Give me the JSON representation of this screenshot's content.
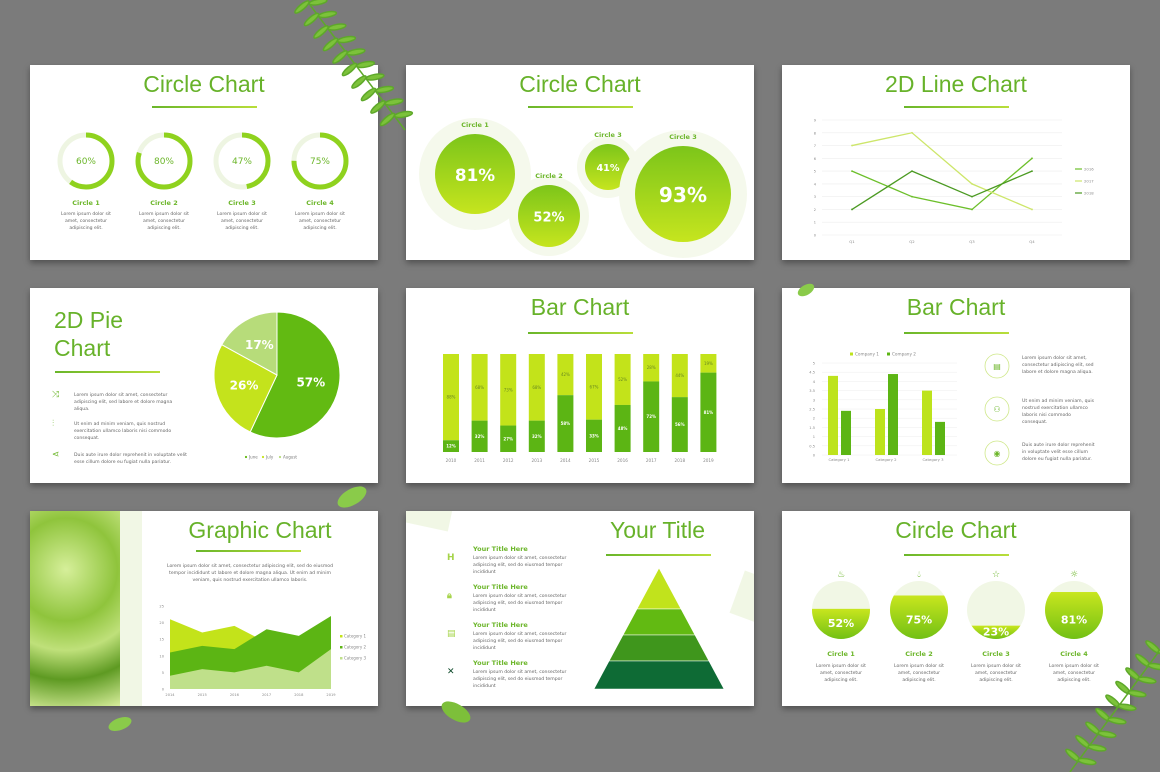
{
  "slides": {
    "s1": {
      "title": "Circle Chart",
      "items": [
        {
          "label": "Circle 1",
          "value": 60,
          "text": "Lorem ipsum dolor sit amet, consectetur adipiscing elit."
        },
        {
          "label": "Circle 2",
          "value": 80,
          "text": "Lorem ipsum dolor sit amet, consectetur adipiscing elit."
        },
        {
          "label": "Circle 3",
          "value": 47,
          "text": "Lorem ipsum dolor sit amet, consectetur adipiscing elit."
        },
        {
          "label": "Circle 4",
          "value": 75,
          "text": "Lorem ipsum dolor sit amet, consectetur adipiscing elit."
        }
      ]
    },
    "s2": {
      "title": "Circle Chart",
      "items": [
        {
          "label": "Circle 1",
          "value": "81%"
        },
        {
          "label": "Circle 2",
          "value": "52%"
        },
        {
          "label": "Circle 3",
          "value": "41%"
        },
        {
          "label": "Circle 3",
          "value": "93%"
        }
      ]
    },
    "s3": {
      "title": "2D Line Chart"
    },
    "s4": {
      "title_line1": "2D Pie",
      "title_line2": "Chart",
      "items": [
        {
          "icon": "shuffle-icon",
          "text": "Lorem ipsum dolor sit amet, consectetur adipiscing elit, sed labore et dolore magna aliqua."
        },
        {
          "icon": "sliders-icon",
          "text": "Ut enim ad minim veniam, quis nostrud exercitation ullamco laboris nisi commodo consequat."
        },
        {
          "icon": "share-icon",
          "text": "Duis aute irure dolor reprehenit in voluptate velit esse cillum dolore eu fugiat nulla pariatur."
        }
      ]
    },
    "s5": {
      "title": "Bar Chart"
    },
    "s6": {
      "title": "Bar Chart",
      "items": [
        {
          "icon": "document-icon",
          "text": "Lorem ipsum dolor sit amet, consectetur adipiscing elit, sed labore et dolore magna aliqua."
        },
        {
          "icon": "video-camera-icon",
          "text": "Ut enim ad minim veniam, quis nostrud exercitation ullamco laboris nisi commodo consequat."
        },
        {
          "icon": "camera-icon",
          "text": "Duis aute irure dolor reprehenit in voluptate velit esse cillum dolore eu fugiat nulla pariatur."
        }
      ]
    },
    "s7": {
      "title": "Graphic Chart",
      "text": "Lorem ipsum dolor sit amet, consectetur adipiscing elit, sed do eiusmod tempor incididunt ut labore et dolore magna aliqua. Ut enim ad minim veniam, quis nostrud exercitation ullamco laboris."
    },
    "s8": {
      "title": "Your Title",
      "items": [
        {
          "icon": "h-icon",
          "title": "Your Title Here",
          "text": "Lorem ipsum dolor sit amet, consectetur adipiscing elit, sed do eiusmod tempor incididunt"
        },
        {
          "icon": "lock-icon",
          "title": "Your Title Here",
          "text": "Lorem ipsum dolor sit amet, consectetur adipiscing elit, sed do eiusmod tempor incididunt"
        },
        {
          "icon": "file-icon",
          "title": "Your Title Here",
          "text": "Lorem ipsum dolor sit amet, consectetur adipiscing elit, sed do eiusmod tempor incididunt"
        },
        {
          "icon": "tools-icon",
          "title": "Your Title Here",
          "text": "Lorem ipsum dolor sit amet, consectetur adipiscing elit, sed do eiusmod tempor incididunt"
        }
      ]
    },
    "s9": {
      "title": "Circle Chart",
      "items": [
        {
          "icon": "fire-icon",
          "label": "Circle 1",
          "value": 52,
          "text": "Lorem ipsum dolor sit amet, consectetur adipiscing elit."
        },
        {
          "icon": "drop-icon",
          "label": "Circle 2",
          "value": 75,
          "text": "Lorem ipsum dolor sit amet, consectetur adipiscing elit."
        },
        {
          "icon": "star-icon",
          "label": "Circle 3",
          "value": 23,
          "text": "Lorem ipsum dolor sit amet, consectetur adipiscing elit."
        },
        {
          "icon": "sun-icon",
          "label": "Circle 4",
          "value": 81,
          "text": "Lorem ipsum dolor sit amet, consectetur adipiscing elit."
        }
      ]
    }
  },
  "colors": {
    "accent": "#67b22a",
    "light": "#c3e31a",
    "dark": "#5ab514",
    "pale": "#eef5e2",
    "pie3": "#b7dc7a",
    "area3": "#bfe08a"
  },
  "chart_data": [
    {
      "type": "line",
      "categories": [
        "Q1",
        "Q2",
        "Q3",
        "Q4"
      ],
      "ylim": [
        0,
        9
      ],
      "yticks": [
        0,
        1,
        2,
        3,
        4,
        5,
        6,
        7,
        8,
        9
      ],
      "grid": true,
      "legend": "right",
      "series": [
        {
          "name": "2016",
          "values": [
            5,
            3,
            2,
            6
          ],
          "color": "#6cbf2a"
        },
        {
          "name": "2017",
          "values": [
            7,
            8,
            4,
            2
          ],
          "color": "#cde66a"
        },
        {
          "name": "2018",
          "values": [
            2,
            5,
            3,
            5
          ],
          "color": "#4b9a22"
        }
      ]
    },
    {
      "type": "pie",
      "values": [
        57,
        26,
        17
      ],
      "labels": [
        "57%",
        "26%",
        "17%"
      ],
      "legend": "bottom",
      "series_names": [
        "June",
        "July",
        "August"
      ],
      "colors": [
        "#62ba12",
        "#c4e31c",
        "#b7dc7a"
      ]
    },
    {
      "type": "bar",
      "stacked": true,
      "categories": [
        "2010",
        "2011",
        "2012",
        "2013",
        "2014",
        "2015",
        "2016",
        "2017",
        "2018",
        "2019"
      ],
      "series": [
        {
          "values": [
            12,
            32,
            27,
            32,
            58,
            33,
            48,
            72,
            56,
            81
          ],
          "color": "#5cb514"
        },
        {
          "values": [
            88,
            68,
            73,
            68,
            42,
            67,
            52,
            28,
            44,
            19
          ],
          "color": "#c3e31a"
        }
      ]
    },
    {
      "type": "bar",
      "categories": [
        "Category 1",
        "Category 2",
        "Category 3"
      ],
      "ylim": [
        0,
        5
      ],
      "yticks": [
        0,
        0.5,
        1,
        1.5,
        2,
        2.5,
        3,
        3.5,
        4,
        4.5,
        5
      ],
      "legend": "top",
      "series": [
        {
          "name": "Company 1",
          "values": [
            4.3,
            2.5,
            3.5
          ],
          "color": "#bde31c"
        },
        {
          "name": "Company 2",
          "values": [
            2.4,
            4.4,
            1.8
          ],
          "color": "#5cb514"
        }
      ]
    },
    {
      "type": "area",
      "categories": [
        "2014",
        "2015",
        "2016",
        "2017",
        "2018",
        "2019"
      ],
      "ylim": [
        0,
        25
      ],
      "yticks": [
        0,
        5,
        10,
        15,
        20,
        25
      ],
      "legend": "right",
      "series": [
        {
          "name": "Category 1",
          "values": [
            21,
            17,
            19,
            14,
            13,
            20
          ],
          "color": "#c3e31a"
        },
        {
          "name": "Category 2",
          "values": [
            11,
            13,
            12,
            18,
            16,
            22
          ],
          "color": "#5cb514"
        },
        {
          "name": "Category 3",
          "values": [
            4,
            6,
            5,
            7,
            5,
            12
          ],
          "color": "#bfe08a"
        }
      ]
    }
  ]
}
